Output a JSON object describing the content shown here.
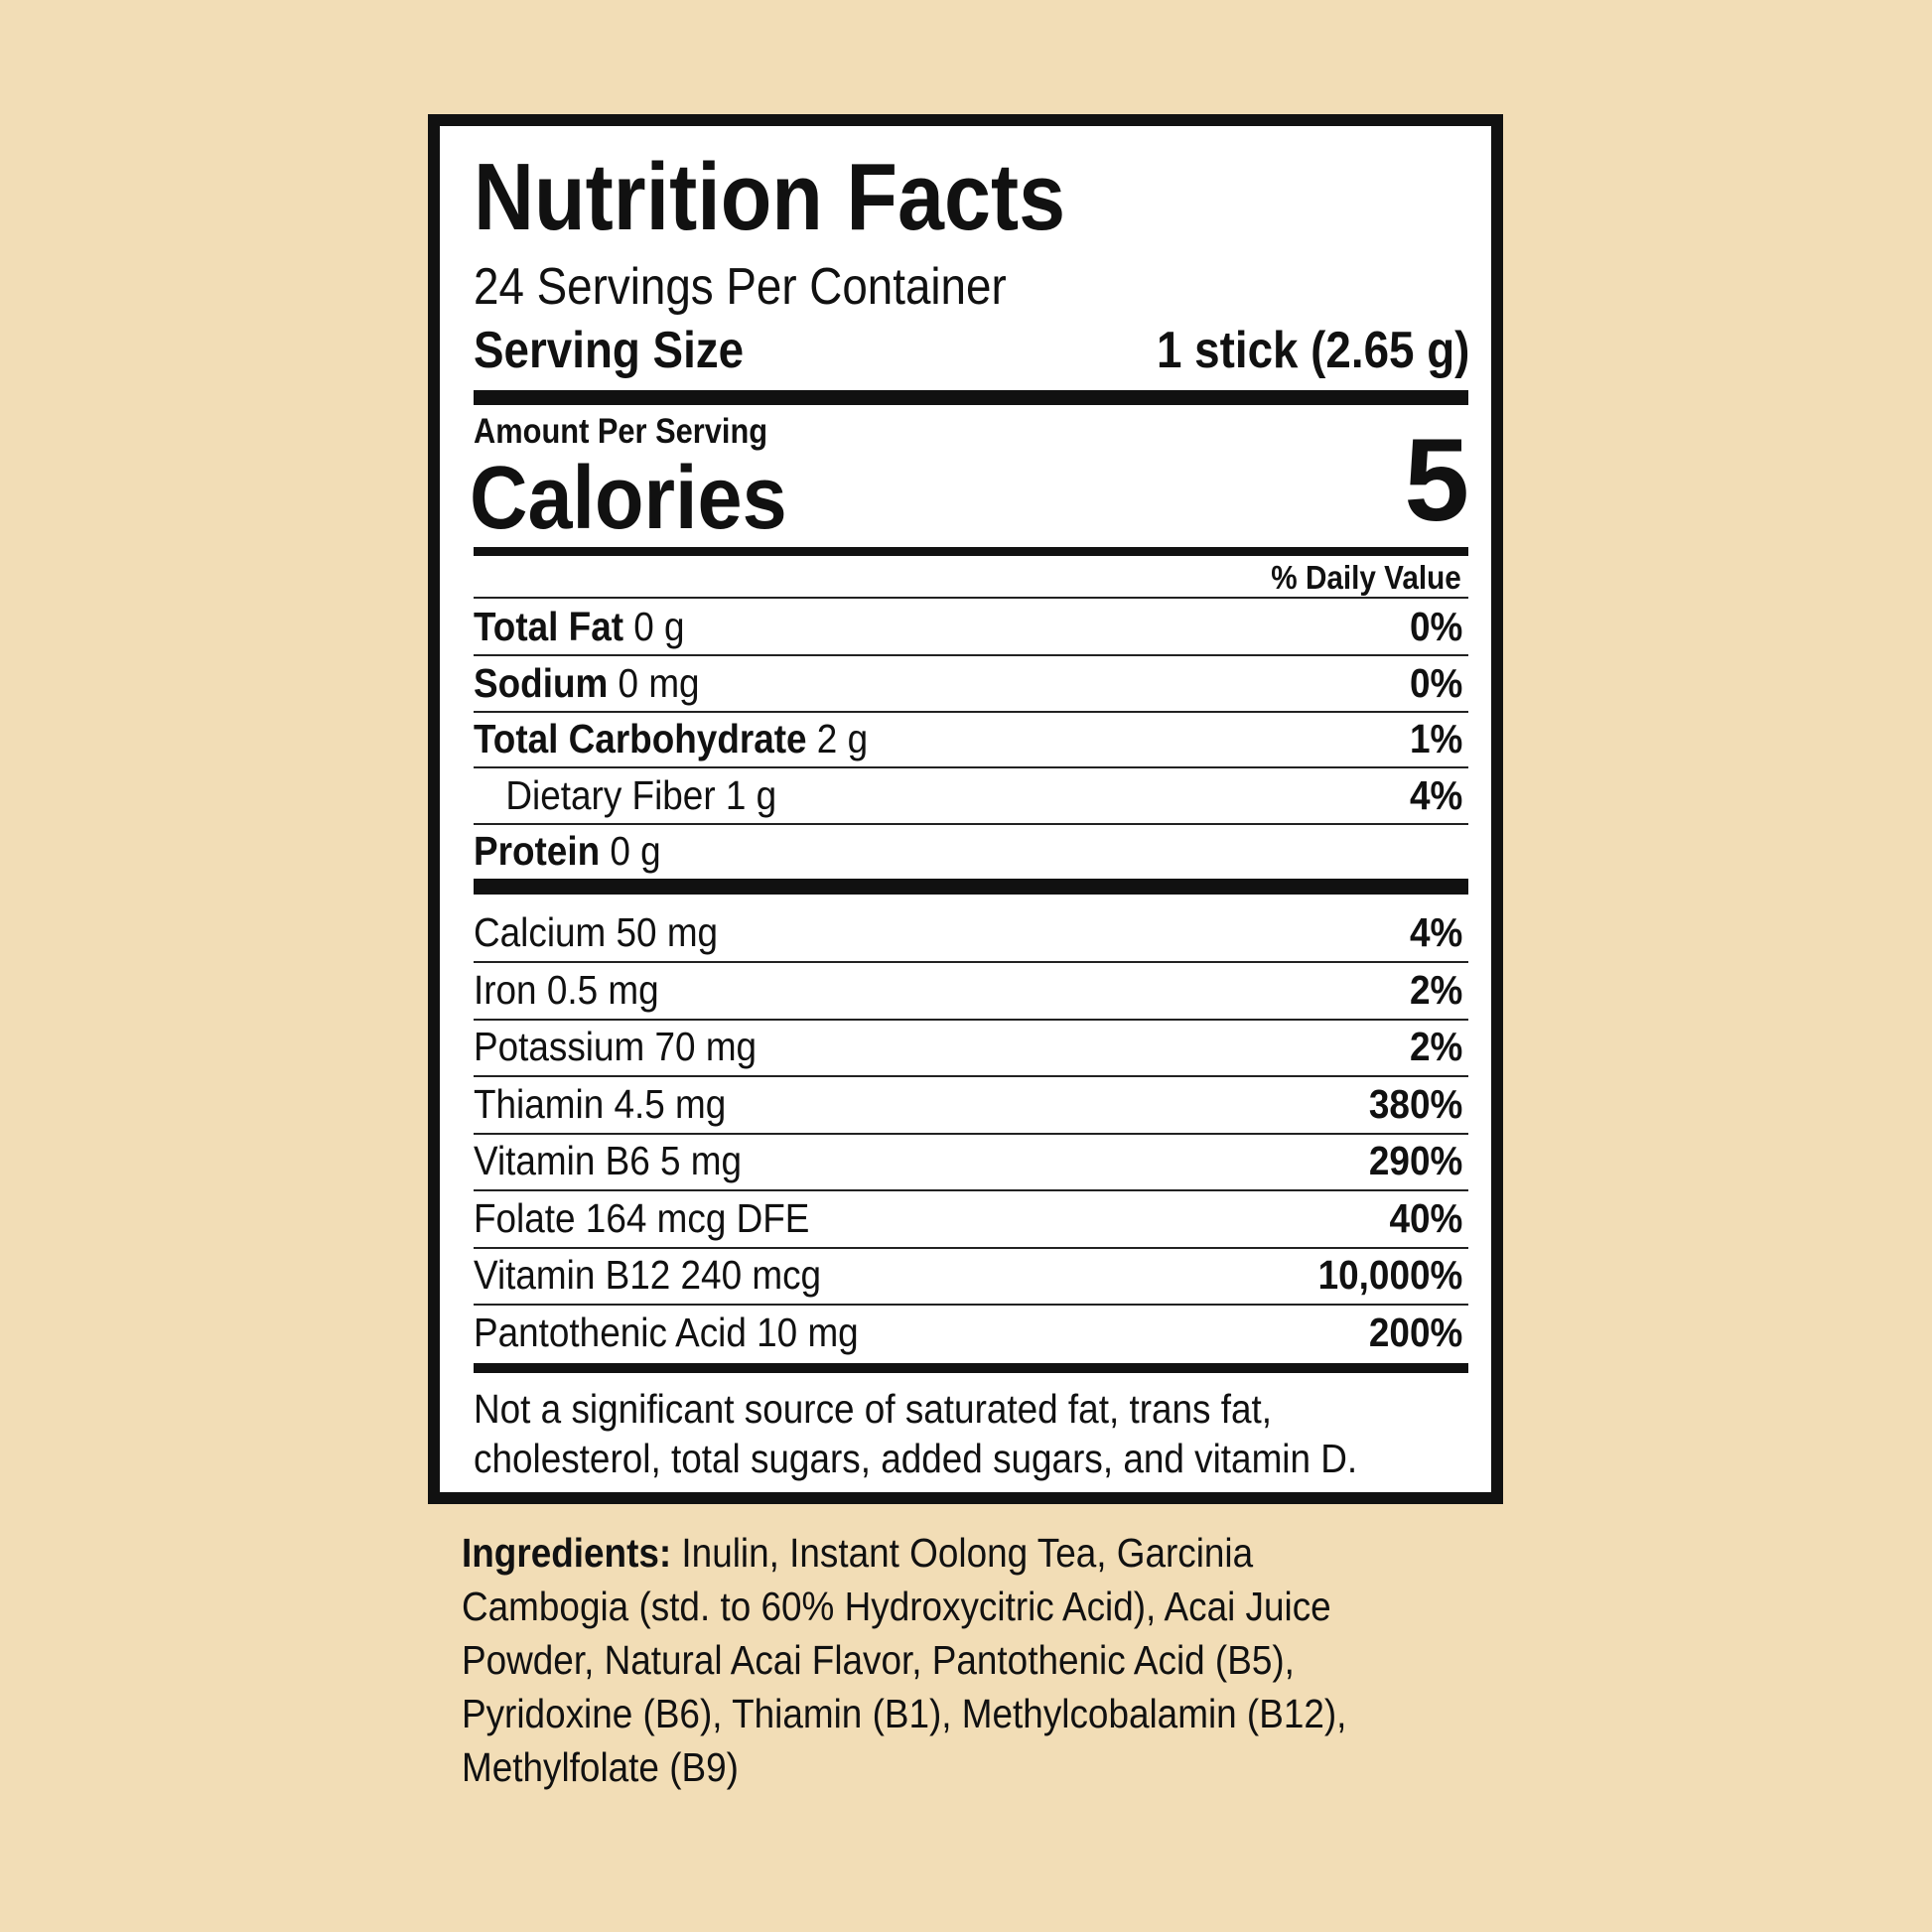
{
  "label": {
    "title": "Nutrition Facts",
    "servings_per_container": "24 Servings Per Container",
    "serving_size_label": "Serving Size",
    "serving_size_value": "1 stick (2.65 g)",
    "amount_per_serving": "Amount Per Serving",
    "calories_label": "Calories",
    "calories_value": "5",
    "daily_value_header": "% Daily Value",
    "nutrients": [
      {
        "name": "Total Fat",
        "amount": " 0 g",
        "dv": "0%",
        "bold": true
      },
      {
        "name": "Sodium",
        "amount": " 0 mg",
        "dv": "0%",
        "bold": true
      },
      {
        "name": "Total Carbohydrate",
        "amount": " 2 g",
        "dv": "1%",
        "bold": true
      },
      {
        "name": "Dietary Fiber",
        "amount": " 1 g",
        "dv": "4%",
        "bold": false
      },
      {
        "name": "Protein",
        "amount": " 0 g",
        "dv": "",
        "bold": true
      }
    ],
    "micronutrients": [
      {
        "text": "Calcium 50 mg",
        "dv": "4%"
      },
      {
        "text": "Iron 0.5 mg",
        "dv": "2%"
      },
      {
        "text": "Potassium 70 mg",
        "dv": "2%"
      },
      {
        "text": "Thiamin 4.5 mg",
        "dv": "380%"
      },
      {
        "text": "Vitamin B6 5 mg",
        "dv": "290%"
      },
      {
        "text": "Folate 164 mcg DFE",
        "dv": "40%"
      },
      {
        "text": "Vitamin B12 240 mcg",
        "dv": "10,000%"
      },
      {
        "text": "Pantothenic Acid 10 mg",
        "dv": "200%"
      }
    ],
    "footnote_1": "Not a significant source of saturated fat, trans fat,",
    "footnote_2": "cholesterol, total sugars, added sugars, and vitamin D."
  },
  "ingredients": {
    "label": "Ingredients:",
    "lines": [
      " Inulin, Instant Oolong Tea, Garcinia",
      "Cambogia (std. to 60% Hydroxycitric Acid), Acai Juice",
      "Powder, Natural Acai Flavor, Pantothenic Acid (B5),",
      "Pyridoxine (B6), Thiamin (B1), Methylcobalamin (B12),",
      "Methylfolate (B9)"
    ]
  },
  "colors": {
    "background": "#f2ddb6",
    "panel": "#ffffff",
    "ink": "#111111"
  }
}
